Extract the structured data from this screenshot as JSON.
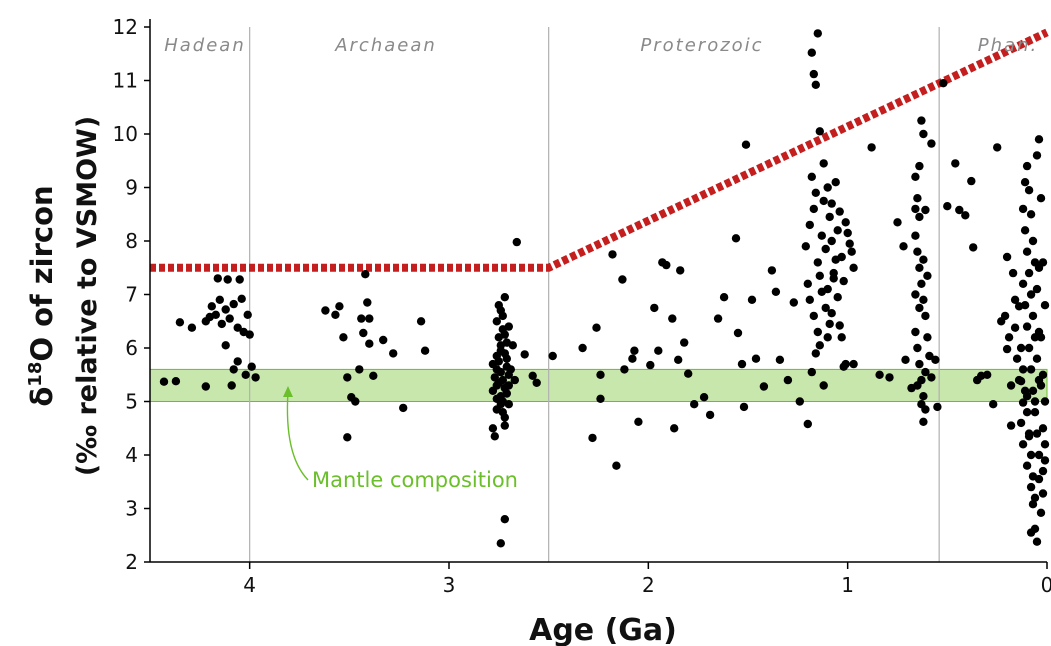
{
  "chart_data": {
    "type": "scatter",
    "xlabel": "Age  (Ga)",
    "ylabel_line1": "δ",
    "ylabel_sup": "18",
    "ylabel_line1_rest": "O of zircon",
    "ylabel_line2": "(‰ relative to VSMOW)",
    "xlim": [
      4.5,
      0
    ],
    "ylim": [
      2,
      12
    ],
    "x_ticks": [
      {
        "value": 4,
        "label": "4"
      },
      {
        "value": 3,
        "label": "3"
      },
      {
        "value": 2,
        "label": "2"
      },
      {
        "value": 1,
        "label": "1"
      },
      {
        "value": 0,
        "label": "0"
      }
    ],
    "y_ticks": [
      {
        "value": 2,
        "label": "2"
      },
      {
        "value": 3,
        "label": "3"
      },
      {
        "value": 4,
        "label": "4"
      },
      {
        "value": 5,
        "label": "5"
      },
      {
        "value": 6,
        "label": "6"
      },
      {
        "value": 7,
        "label": "7"
      },
      {
        "value": 8,
        "label": "8"
      },
      {
        "value": 9,
        "label": "9"
      },
      {
        "value": 10,
        "label": "10"
      },
      {
        "value": 11,
        "label": "11"
      },
      {
        "value": 12,
        "label": "12"
      }
    ],
    "eras": [
      {
        "label": "Hadean",
        "from": 4.5,
        "to": 4.0
      },
      {
        "label": "Archaean",
        "from": 4.0,
        "to": 2.5
      },
      {
        "label": "Proterozoic",
        "from": 2.5,
        "to": 0.541
      },
      {
        "label": "Phan.",
        "from": 0.541,
        "to": 0
      }
    ],
    "era_boundaries": [
      4.0,
      2.5,
      0.541
    ],
    "mantle_band": {
      "label": "Mantle composition",
      "y_min": 5.0,
      "y_max": 5.6,
      "color": "#9ad46a"
    },
    "upper_limit_line": {
      "color": "#c41e1e",
      "points": [
        [
          4.5,
          7.5
        ],
        [
          2.5,
          7.5
        ],
        [
          0,
          11.9
        ]
      ]
    },
    "point_color": "#000000",
    "points": [
      [
        4.43,
        5.37
      ],
      [
        4.37,
        5.38
      ],
      [
        4.35,
        6.48
      ],
      [
        4.29,
        6.38
      ],
      [
        4.22,
        6.5
      ],
      [
        4.22,
        5.28
      ],
      [
        4.2,
        6.58
      ],
      [
        4.19,
        6.78
      ],
      [
        4.17,
        6.62
      ],
      [
        4.16,
        7.3
      ],
      [
        4.15,
        6.9
      ],
      [
        4.14,
        6.45
      ],
      [
        4.12,
        6.72
      ],
      [
        4.12,
        6.05
      ],
      [
        4.11,
        7.28
      ],
      [
        4.1,
        6.55
      ],
      [
        4.09,
        5.3
      ],
      [
        4.08,
        6.82
      ],
      [
        4.08,
        5.6
      ],
      [
        4.06,
        6.38
      ],
      [
        4.06,
        5.75
      ],
      [
        4.05,
        7.28
      ],
      [
        4.04,
        6.92
      ],
      [
        4.03,
        6.3
      ],
      [
        4.02,
        5.5
      ],
      [
        4.01,
        6.62
      ],
      [
        4.0,
        6.25
      ],
      [
        3.99,
        5.65
      ],
      [
        3.97,
        5.45
      ],
      [
        3.62,
        6.7
      ],
      [
        3.57,
        6.62
      ],
      [
        3.55,
        6.78
      ],
      [
        3.53,
        6.2
      ],
      [
        3.51,
        5.45
      ],
      [
        3.51,
        4.33
      ],
      [
        3.49,
        5.08
      ],
      [
        3.47,
        5.0
      ],
      [
        3.45,
        5.6
      ],
      [
        3.44,
        6.55
      ],
      [
        3.43,
        6.28
      ],
      [
        3.42,
        7.38
      ],
      [
        3.41,
        6.85
      ],
      [
        3.4,
        6.55
      ],
      [
        3.4,
        6.08
      ],
      [
        3.38,
        5.48
      ],
      [
        3.33,
        6.15
      ],
      [
        3.28,
        5.9
      ],
      [
        3.23,
        4.88
      ],
      [
        3.14,
        6.5
      ],
      [
        3.12,
        5.95
      ],
      [
        2.74,
        2.35
      ],
      [
        2.72,
        2.8
      ],
      [
        2.66,
        7.98
      ],
      [
        2.62,
        5.88
      ],
      [
        2.58,
        5.48
      ],
      [
        2.56,
        5.35
      ],
      [
        2.48,
        5.85
      ],
      [
        2.33,
        6.0
      ],
      [
        2.28,
        4.32
      ],
      [
        2.26,
        6.38
      ],
      [
        2.24,
        5.05
      ],
      [
        2.24,
        5.5
      ],
      [
        2.18,
        7.75
      ],
      [
        2.16,
        3.8
      ],
      [
        2.13,
        7.28
      ],
      [
        2.12,
        5.6
      ],
      [
        2.08,
        5.8
      ],
      [
        2.07,
        5.95
      ],
      [
        2.05,
        4.62
      ],
      [
        1.99,
        5.68
      ],
      [
        1.97,
        6.75
      ],
      [
        1.95,
        5.95
      ],
      [
        1.93,
        7.6
      ],
      [
        1.91,
        7.55
      ],
      [
        1.88,
        6.55
      ],
      [
        1.87,
        4.5
      ],
      [
        1.85,
        5.78
      ],
      [
        1.84,
        7.45
      ],
      [
        1.82,
        6.1
      ],
      [
        1.8,
        5.52
      ],
      [
        1.77,
        4.95
      ],
      [
        1.72,
        5.08
      ],
      [
        1.69,
        4.75
      ],
      [
        1.65,
        6.55
      ],
      [
        1.62,
        6.95
      ],
      [
        1.56,
        8.05
      ],
      [
        1.55,
        6.28
      ],
      [
        1.53,
        5.7
      ],
      [
        1.52,
        4.9
      ],
      [
        1.51,
        9.8
      ],
      [
        1.48,
        6.9
      ],
      [
        1.46,
        5.8
      ],
      [
        1.42,
        5.28
      ],
      [
        1.38,
        7.45
      ],
      [
        1.36,
        7.05
      ],
      [
        1.34,
        5.78
      ],
      [
        1.3,
        5.4
      ],
      [
        1.27,
        6.85
      ],
      [
        1.24,
        5.0
      ],
      [
        1.2,
        4.58
      ],
      [
        1.18,
        11.52
      ],
      [
        1.17,
        11.12
      ],
      [
        1.16,
        10.92
      ],
      [
        1.15,
        11.88
      ],
      [
        1.14,
        10.05
      ],
      [
        1.12,
        5.3
      ],
      [
        1.1,
        6.2
      ],
      [
        1.08,
        6.65
      ],
      [
        1.06,
        9.1
      ],
      [
        1.04,
        6.42
      ],
      [
        1.02,
        5.65
      ],
      [
        0.97,
        5.7
      ],
      [
        0.88,
        9.75
      ],
      [
        0.84,
        5.5
      ],
      [
        0.79,
        5.45
      ],
      [
        0.75,
        8.35
      ],
      [
        0.72,
        7.9
      ],
      [
        0.71,
        5.78
      ],
      [
        0.68,
        5.25
      ],
      [
        0.61,
        8.58
      ],
      [
        0.58,
        9.82
      ],
      [
        0.56,
        5.78
      ],
      [
        0.55,
        4.9
      ],
      [
        0.52,
        10.95
      ],
      [
        0.5,
        8.65
      ],
      [
        0.46,
        9.45
      ],
      [
        0.44,
        8.58
      ],
      [
        0.41,
        8.48
      ],
      [
        0.38,
        9.12
      ],
      [
        0.37,
        7.88
      ],
      [
        0.35,
        5.4
      ],
      [
        0.33,
        5.48
      ],
      [
        0.3,
        5.5
      ],
      [
        0.27,
        4.95
      ],
      [
        0.25,
        9.75
      ],
      [
        0.23,
        6.5
      ],
      [
        0.2,
        5.98
      ],
      [
        0.18,
        4.55
      ],
      [
        0.16,
        6.38
      ],
      [
        0.14,
        6.78
      ],
      [
        0.13,
        5.38
      ],
      [
        0.12,
        4.98
      ],
      [
        0.1,
        5.1
      ],
      [
        0.09,
        4.35
      ],
      [
        0.08,
        2.55
      ],
      [
        0.07,
        3.08
      ],
      [
        0.06,
        2.62
      ],
      [
        0.05,
        2.38
      ],
      [
        0.04,
        3.55
      ],
      [
        0.03,
        2.92
      ],
      [
        0.02,
        3.28
      ],
      [
        0.01,
        3.9
      ],
      [
        2.78,
        5.2
      ],
      [
        2.76,
        5.6
      ],
      [
        2.74,
        5.95
      ],
      [
        2.72,
        6.25
      ],
      [
        2.76,
        6.5
      ],
      [
        2.74,
        4.95
      ],
      [
        2.72,
        4.7
      ],
      [
        2.78,
        4.5
      ],
      [
        2.73,
        5.4
      ],
      [
        2.71,
        5.8
      ],
      [
        2.75,
        6.8
      ],
      [
        2.72,
        6.95
      ],
      [
        2.76,
        5.3
      ],
      [
        2.74,
        5.1
      ],
      [
        2.7,
        5.5
      ],
      [
        2.77,
        4.35
      ],
      [
        2.73,
        6.6
      ],
      [
        2.75,
        5.75
      ],
      [
        2.71,
        6.1
      ],
      [
        2.74,
        5.55
      ],
      [
        2.72,
        5.25
      ],
      [
        2.76,
        4.85
      ],
      [
        2.7,
        6.4
      ],
      [
        2.73,
        5.0
      ],
      [
        2.75,
        6.2
      ],
      [
        2.71,
        5.65
      ],
      [
        2.77,
        5.45
      ],
      [
        2.72,
        4.55
      ],
      [
        2.74,
        6.05
      ],
      [
        2.76,
        5.85
      ],
      [
        2.7,
        4.95
      ],
      [
        2.73,
        6.35
      ],
      [
        2.75,
        5.35
      ],
      [
        2.72,
        5.9
      ],
      [
        2.71,
        5.15
      ],
      [
        2.74,
        6.7
      ],
      [
        2.76,
        5.05
      ],
      [
        2.78,
        5.7
      ],
      [
        2.7,
        5.3
      ],
      [
        2.73,
        4.8
      ],
      [
        2.69,
        5.6
      ],
      [
        2.68,
        6.05
      ],
      [
        2.67,
        5.4
      ],
      [
        1.21,
        7.9
      ],
      [
        1.19,
        8.3
      ],
      [
        1.17,
        8.6
      ],
      [
        1.15,
        7.6
      ],
      [
        1.13,
        8.1
      ],
      [
        1.11,
        7.85
      ],
      [
        1.09,
        8.45
      ],
      [
        1.07,
        7.4
      ],
      [
        1.05,
        8.2
      ],
      [
        1.03,
        7.7
      ],
      [
        1.01,
        8.35
      ],
      [
        0.99,
        7.95
      ],
      [
        0.97,
        7.5
      ],
      [
        1.2,
        7.2
      ],
      [
        1.18,
        9.2
      ],
      [
        1.16,
        8.9
      ],
      [
        1.14,
        7.35
      ],
      [
        1.12,
        8.75
      ],
      [
        1.1,
        7.1
      ],
      [
        1.08,
        8.0
      ],
      [
        1.06,
        7.65
      ],
      [
        1.04,
        8.55
      ],
      [
        1.02,
        7.25
      ],
      [
        1.0,
        8.15
      ],
      [
        0.98,
        7.8
      ],
      [
        1.19,
        6.9
      ],
      [
        1.17,
        6.6
      ],
      [
        1.15,
        6.3
      ],
      [
        1.13,
        7.05
      ],
      [
        1.11,
        6.75
      ],
      [
        1.09,
        6.45
      ],
      [
        1.07,
        7.3
      ],
      [
        1.05,
        6.95
      ],
      [
        1.03,
        6.2
      ],
      [
        1.01,
        5.7
      ],
      [
        1.18,
        5.55
      ],
      [
        1.16,
        5.9
      ],
      [
        1.14,
        6.05
      ],
      [
        1.12,
        9.45
      ],
      [
        1.1,
        9.0
      ],
      [
        1.08,
        8.7
      ],
      [
        0.66,
        9.2
      ],
      [
        0.65,
        8.8
      ],
      [
        0.64,
        9.4
      ],
      [
        0.63,
        10.25
      ],
      [
        0.62,
        10.0
      ],
      [
        0.66,
        8.1
      ],
      [
        0.65,
        7.8
      ],
      [
        0.64,
        7.5
      ],
      [
        0.63,
        7.2
      ],
      [
        0.62,
        6.9
      ],
      [
        0.61,
        6.6
      ],
      [
        0.66,
        6.3
      ],
      [
        0.65,
        6.0
      ],
      [
        0.64,
        5.7
      ],
      [
        0.63,
        5.4
      ],
      [
        0.62,
        5.1
      ],
      [
        0.61,
        4.85
      ],
      [
        0.66,
        7.0
      ],
      [
        0.64,
        6.75
      ],
      [
        0.62,
        7.65
      ],
      [
        0.6,
        7.35
      ],
      [
        0.65,
        5.3
      ],
      [
        0.63,
        4.95
      ],
      [
        0.61,
        5.55
      ],
      [
        0.6,
        6.2
      ],
      [
        0.59,
        5.85
      ],
      [
        0.58,
        5.45
      ],
      [
        0.62,
        4.62
      ],
      [
        0.64,
        8.45
      ],
      [
        0.66,
        8.6
      ],
      [
        0.12,
        8.6
      ],
      [
        0.11,
        8.2
      ],
      [
        0.1,
        7.8
      ],
      [
        0.09,
        7.4
      ],
      [
        0.08,
        7.0
      ],
      [
        0.07,
        6.6
      ],
      [
        0.06,
        6.2
      ],
      [
        0.05,
        5.8
      ],
      [
        0.04,
        5.4
      ],
      [
        0.12,
        7.2
      ],
      [
        0.11,
        6.8
      ],
      [
        0.1,
        6.4
      ],
      [
        0.09,
        6.0
      ],
      [
        0.08,
        5.6
      ],
      [
        0.07,
        5.2
      ],
      [
        0.06,
        4.8
      ],
      [
        0.05,
        4.4
      ],
      [
        0.04,
        4.0
      ],
      [
        0.13,
        6.0
      ],
      [
        0.12,
        5.6
      ],
      [
        0.11,
        5.2
      ],
      [
        0.1,
        4.8
      ],
      [
        0.09,
        4.4
      ],
      [
        0.08,
        4.0
      ],
      [
        0.07,
        3.6
      ],
      [
        0.06,
        3.2
      ],
      [
        0.05,
        9.6
      ],
      [
        0.04,
        9.9
      ],
      [
        0.03,
        8.8
      ],
      [
        0.02,
        7.6
      ],
      [
        0.01,
        6.8
      ],
      [
        0.03,
        6.2
      ],
      [
        0.02,
        5.5
      ],
      [
        0.01,
        5.0
      ],
      [
        0.14,
        5.4
      ],
      [
        0.15,
        5.8
      ],
      [
        0.16,
        6.9
      ],
      [
        0.17,
        7.4
      ],
      [
        0.18,
        5.3
      ],
      [
        0.19,
        6.2
      ],
      [
        0.2,
        7.7
      ],
      [
        0.21,
        6.6
      ],
      [
        0.13,
        4.6
      ],
      [
        0.12,
        4.2
      ],
      [
        0.1,
        3.8
      ],
      [
        0.08,
        3.4
      ],
      [
        0.06,
        5.0
      ],
      [
        0.04,
        6.3
      ],
      [
        0.02,
        4.5
      ],
      [
        0.01,
        4.2
      ],
      [
        0.11,
        9.1
      ],
      [
        0.1,
        9.4
      ],
      [
        0.09,
        8.95
      ],
      [
        0.08,
        8.5
      ],
      [
        0.07,
        8.0
      ],
      [
        0.06,
        7.6
      ],
      [
        0.05,
        7.1
      ],
      [
        0.04,
        7.5
      ],
      [
        0.03,
        5.3
      ],
      [
        0.02,
        3.7
      ]
    ]
  }
}
